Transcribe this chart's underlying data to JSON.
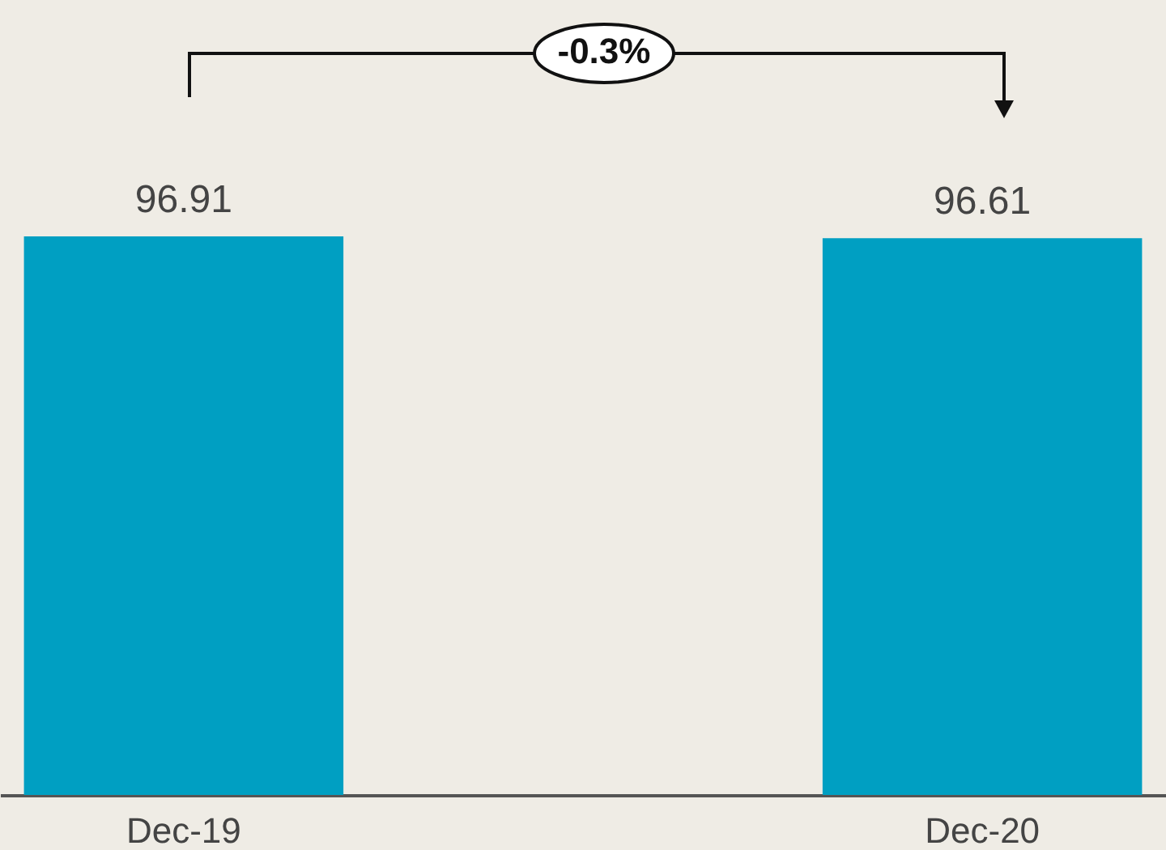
{
  "chart_data": {
    "type": "bar",
    "categories": [
      "Dec-19",
      "Dec-20"
    ],
    "values": [
      96.91,
      96.61
    ],
    "color": "#009fc2",
    "data_labels": true,
    "annotations": [
      "-0.3%"
    ]
  }
}
